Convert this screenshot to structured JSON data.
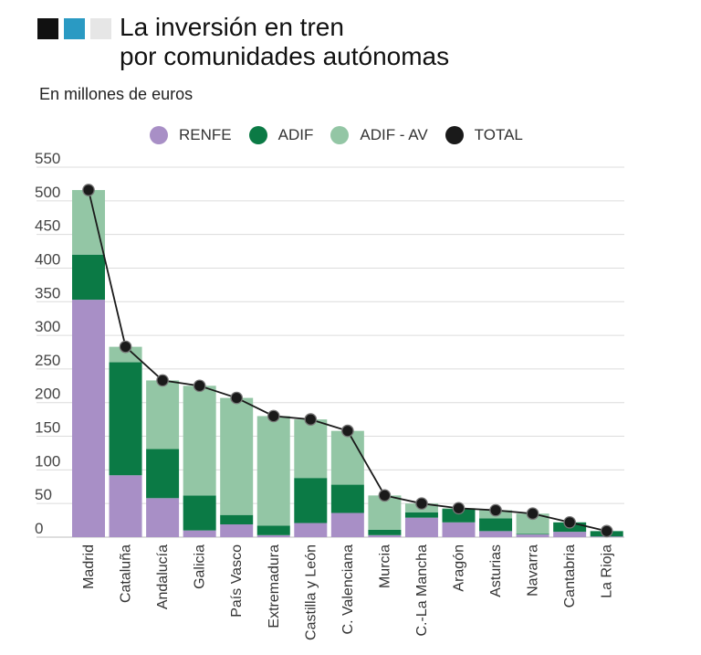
{
  "header": {
    "logo_colors": [
      "#111111",
      "#2a9ac3",
      "#e6e6e6"
    ],
    "title_line1": "La inversión en tren",
    "title_line2": "por comunidades autónomas",
    "subtitle": "En millones de euros"
  },
  "legend": [
    {
      "label": "RENFE",
      "color": "#a88fc6"
    },
    {
      "label": "ADIF",
      "color": "#0b7a45"
    },
    {
      "label": "ADIF - AV",
      "color": "#93c6a5"
    },
    {
      "label": "TOTAL",
      "color": "#1a1a1a"
    }
  ],
  "chart_data": {
    "type": "bar",
    "stacked": true,
    "title": "La inversión en tren por comunidades autónomas",
    "ylabel": "En millones de euros",
    "ylim": [
      0,
      550
    ],
    "yticks": [
      0,
      50,
      100,
      150,
      200,
      250,
      300,
      350,
      400,
      450,
      500,
      550
    ],
    "categories": [
      "Madrid",
      "Cataluña",
      "Andalucía",
      "Galicia",
      "País Vasco",
      "Extremadura",
      "Castilla y León",
      "C. Valenciana",
      "Murcia",
      "C.-La Mancha",
      "Aragón",
      "Asturias",
      "Navarra",
      "Cantabria",
      "La Rioja"
    ],
    "series": [
      {
        "name": "RENFE",
        "color": "#a88fc6",
        "values": [
          353,
          92,
          58,
          10,
          19,
          3,
          21,
          36,
          3,
          29,
          22,
          9,
          4,
          8,
          1
        ]
      },
      {
        "name": "ADIF",
        "color": "#0b7a45",
        "values": [
          67,
          168,
          73,
          52,
          14,
          14,
          67,
          42,
          8,
          8,
          20,
          19,
          1,
          14,
          8
        ]
      },
      {
        "name": "ADIF - AV",
        "color": "#93c6a5",
        "values": [
          96,
          23,
          102,
          163,
          174,
          163,
          87,
          80,
          51,
          13,
          1,
          12,
          30,
          0,
          0
        ]
      },
      {
        "name": "TOTAL",
        "color": "#1a1a1a",
        "type": "line",
        "values": [
          516,
          283,
          233,
          225,
          207,
          180,
          175,
          158,
          62,
          50,
          43,
          40,
          35,
          22,
          9
        ]
      }
    ]
  }
}
